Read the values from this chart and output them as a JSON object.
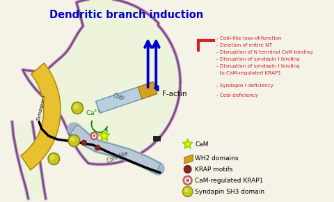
{
  "bg_color": "#f5f2e8",
  "title": "Dendritic branch induction",
  "title_color": "#0000cc",
  "title_fontsize": 10.5,
  "inhibitor_lines": [
    "- Cobl-like loss-of-function",
    "- Deletion of entire NT",
    "- Disruption of N terminal CaM binding",
    "- Disruption of syndapin I binding",
    "- Disruption of syndapin I binding",
    "  to CaM-regulated KRAP1"
  ],
  "inhibitor_lines2": [
    "- Syndapin I deficiency",
    "- Cobl deficiency"
  ],
  "text_color_red": "#cc2222",
  "inhibitor_bar_color": "#cc2222",
  "arrow_color": "#0000cc",
  "neuron_outline_color": "#7b3f8c",
  "cell_fill": "#eef4dc",
  "cobl_bar_color": "#b8d0e8",
  "cobl_bar_outline": "#7090b0",
  "wh2_color": "#d4a020",
  "krap_color": "#8b3030",
  "cam_color": "#aaff00",
  "sh3_color": "#b8b820",
  "factin_arrow_color": "#0000cc",
  "syndapin_color": "#e8c030",
  "syndapin_edge": "#b09010",
  "cobl_like_color": "#b8c8d8",
  "cobl_like_edge": "#7090a0"
}
